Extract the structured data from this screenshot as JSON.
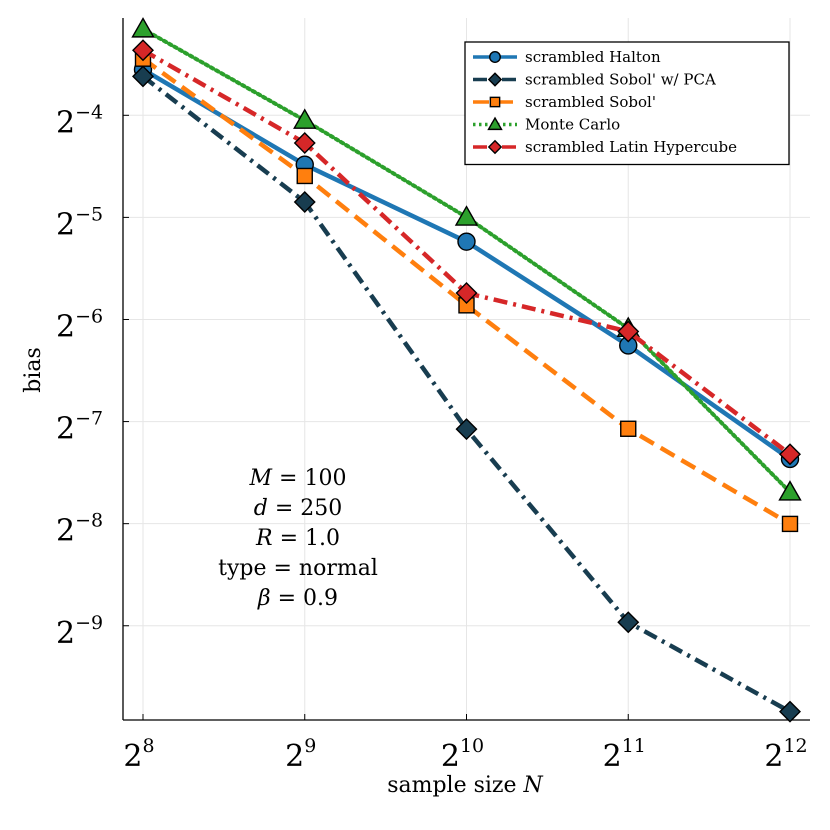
{
  "chart_data": {
    "type": "line",
    "xlabel": "sample size N",
    "ylabel": "bias",
    "xscale": "log2",
    "yscale": "log2",
    "x": [
      256,
      512,
      1024,
      2048,
      4096
    ],
    "xlim": [
      256,
      4096
    ],
    "ylim": [
      0.00103,
      0.121
    ],
    "x_ticks": [
      {
        "base": "2",
        "exp": "8",
        "value": 256
      },
      {
        "base": "2",
        "exp": "9",
        "value": 512
      },
      {
        "base": "2",
        "exp": "10",
        "value": 1024
      },
      {
        "base": "2",
        "exp": "11",
        "value": 2048
      },
      {
        "base": "2",
        "exp": "12",
        "value": 4096
      }
    ],
    "y_ticks": [
      {
        "base": "2",
        "exp": "−4",
        "value": 0.0625
      },
      {
        "base": "2",
        "exp": "−5",
        "value": 0.03125
      },
      {
        "base": "2",
        "exp": "−6",
        "value": 0.015625
      },
      {
        "base": "2",
        "exp": "−7",
        "value": 0.0078125
      },
      {
        "base": "2",
        "exp": "−8",
        "value": 0.00390625
      },
      {
        "base": "2",
        "exp": "−9",
        "value": 0.001953125
      }
    ],
    "grid": true,
    "legend_position": "top-right",
    "series": [
      {
        "name": "scrambled Halton",
        "color": "#1f77b4",
        "dash": "solid",
        "marker": "circle",
        "values": [
          0.0853,
          0.0447,
          0.0265,
          0.0131,
          0.00606
        ]
      },
      {
        "name": "scrambled Sobol' w/ PCA",
        "color": "#183d50",
        "dash": "dashdot",
        "marker": "diamond",
        "values": [
          0.0814,
          0.0347,
          0.00742,
          0.002,
          0.00109
        ]
      },
      {
        "name": "scrambled Sobol'",
        "color": "#ff7f0e",
        "dash": "dash",
        "marker": "square",
        "values": [
          0.0918,
          0.0414,
          0.0172,
          0.00744,
          0.0039
        ]
      },
      {
        "name": "Monte Carlo",
        "color": "#2ca02c",
        "dash": "dot",
        "marker": "triangle",
        "values": [
          0.1123,
          0.0604,
          0.0313,
          0.0147,
          0.00484
        ]
      },
      {
        "name": "scrambled Latin Hypercube",
        "color": "#d62728",
        "dash": "dashdot",
        "marker": "diamond",
        "values": [
          0.0972,
          0.0518,
          0.0187,
          0.0144,
          0.00626
        ]
      }
    ],
    "annotations": [
      {
        "lhs": "M",
        "rhs": "100"
      },
      {
        "lhs": "d",
        "rhs": "250"
      },
      {
        "lhs": "R",
        "rhs": "1.0"
      },
      {
        "lhs": "type",
        "rhs": "normal"
      },
      {
        "lhs": "β",
        "rhs": "0.9"
      }
    ]
  }
}
